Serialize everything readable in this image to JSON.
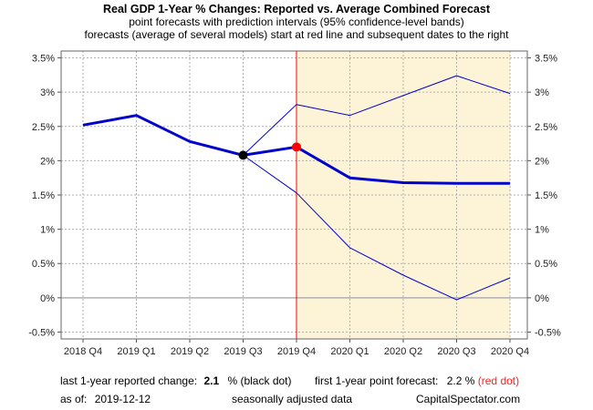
{
  "titles": {
    "main": "Real GDP 1-Year % Changes: Reported vs. Average Combined Forecast",
    "sub1": "point forecasts with prediction intervals (95% confidence-level bands)",
    "sub2": "forecasts (average of several models) start at red line and subsequent dates to the right"
  },
  "chart_data": {
    "type": "line",
    "categories": [
      "2018 Q4",
      "2019 Q1",
      "2019 Q2",
      "2019 Q3",
      "2019 Q4",
      "2020 Q1",
      "2020 Q2",
      "2020 Q3",
      "2020 Q4"
    ],
    "y_tick_labels": [
      "-0.5%",
      "0%",
      "0.5%",
      "1%",
      "1.5%",
      "2%",
      "2.5%",
      "3%",
      "3.5%"
    ],
    "y_ticks": [
      -0.5,
      0,
      0.5,
      1,
      1.5,
      2,
      2.5,
      3,
      3.5
    ],
    "ylim": [
      -0.6,
      3.6
    ],
    "grid": true,
    "forecast_start_index": 4,
    "colors": {
      "series": "#0000cc",
      "forecast_line": "#ff0000",
      "forecast_band": "#fdf4d8",
      "zero_line": "#b0b0b0",
      "grid": "#b0b0b0"
    },
    "series": [
      {
        "role": "reported",
        "values": [
          2.52,
          2.66,
          2.28,
          2.08,
          null,
          null,
          null,
          null,
          null
        ]
      },
      {
        "role": "forecast",
        "values": [
          null,
          null,
          null,
          2.08,
          2.2,
          1.75,
          1.68,
          1.67,
          1.67
        ]
      },
      {
        "role": "upper_band",
        "values": [
          null,
          null,
          null,
          2.08,
          2.82,
          2.66,
          2.95,
          3.24,
          2.98
        ]
      },
      {
        "role": "lower_band",
        "values": [
          null,
          null,
          null,
          2.08,
          1.53,
          0.73,
          0.33,
          -0.03,
          0.29
        ]
      }
    ],
    "markers": [
      {
        "role": "last_reported",
        "index": 3,
        "value": 2.08,
        "color": "#000000"
      },
      {
        "role": "first_forecast",
        "index": 4,
        "value": 2.2,
        "color": "#ff0000"
      }
    ]
  },
  "footer": {
    "last_label": "last 1-year reported change:",
    "last_value": "2.1",
    "last_suffix": "% (black dot)",
    "first_label": "first 1-year point forecast:",
    "first_value": "2.2 %",
    "first_suffix": "(red dot)",
    "asof_label": "as of:",
    "asof_date": "2019-12-12",
    "adjusted": "seasonally adjusted data",
    "source": "CapitalSpectator.com"
  }
}
